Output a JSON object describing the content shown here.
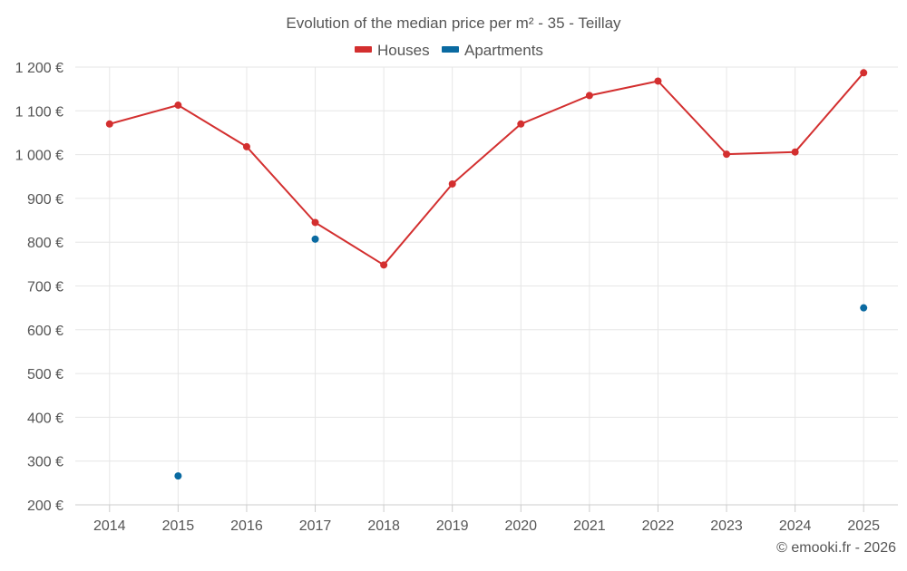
{
  "chart_data": {
    "type": "line",
    "title": "Evolution of the median price per m² - 35 - Teillay",
    "categories": [
      "2014",
      "2015",
      "2016",
      "2017",
      "2018",
      "2019",
      "2020",
      "2021",
      "2022",
      "2023",
      "2024",
      "2025"
    ],
    "series": [
      {
        "name": "Houses",
        "color": "#d32f2f",
        "values": [
          1070,
          1113,
          1018,
          845,
          748,
          933,
          1070,
          1135,
          1168,
          1001,
          1006,
          1187
        ]
      },
      {
        "name": "Apartments",
        "color": "#0a6aa1",
        "values": [
          null,
          266,
          null,
          807,
          null,
          null,
          null,
          null,
          null,
          null,
          null,
          650
        ]
      }
    ],
    "ylim": [
      200,
      1200
    ],
    "ytick_values": [
      200,
      300,
      400,
      500,
      600,
      700,
      800,
      900,
      1000,
      1100,
      1200
    ],
    "ytick_labels": [
      "200 €",
      "300 €",
      "400 €",
      "500 €",
      "600 €",
      "700 €",
      "800 €",
      "900 €",
      "1 000 €",
      "1 100 €",
      "1 200 €"
    ],
    "legend_position": "top-center",
    "grid": true,
    "credits": "© emooki.fr - 2026"
  }
}
